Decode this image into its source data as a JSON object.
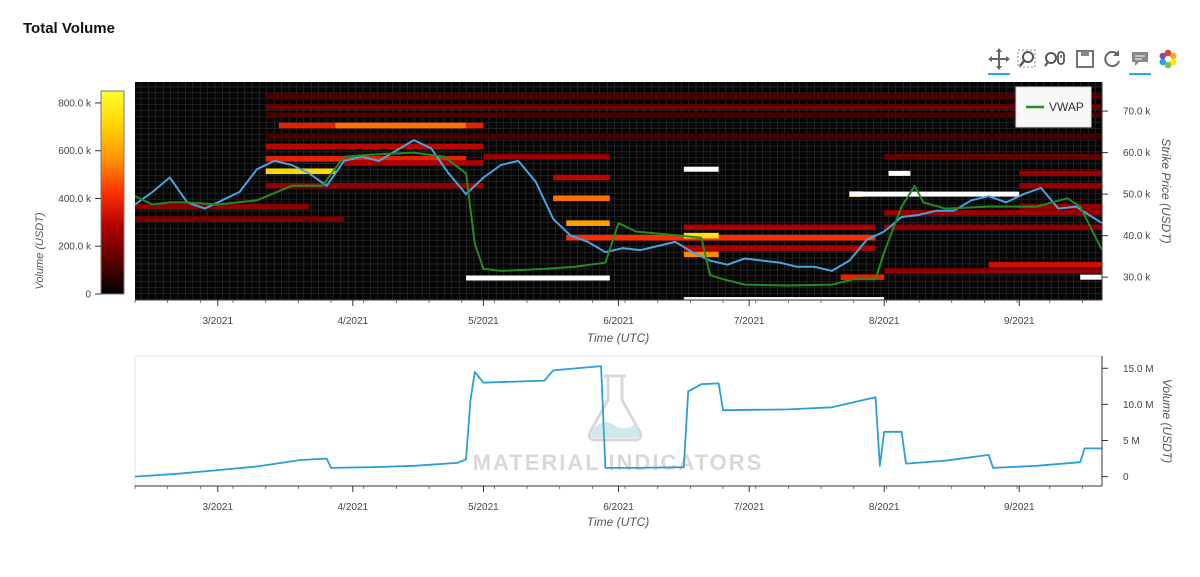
{
  "title": "Total Volume",
  "watermark": "MATERIAL INDICATORS",
  "toolbar": {
    "tools": [
      {
        "name": "pan-tool-icon",
        "active": true
      },
      {
        "name": "box-zoom-tool-icon",
        "active": false
      },
      {
        "name": "wheel-zoom-tool-icon",
        "active": false
      },
      {
        "name": "save-tool-icon",
        "active": false
      },
      {
        "name": "reset-tool-icon",
        "active": false
      },
      {
        "name": "hover-tool-icon",
        "active": true
      },
      {
        "name": "bokeh-logo-icon",
        "active": false
      }
    ]
  },
  "chart_data": [
    {
      "type": "heatmap",
      "xlabel": "Time (UTC)",
      "ylabel": "Strike Price (USDT)",
      "x_ticks": [
        "3/2021",
        "4/2021",
        "5/2021",
        "6/2021",
        "7/2021",
        "8/2021",
        "9/2021"
      ],
      "y_ticks": [
        "30.0 k",
        "40.0 k",
        "50.0 k",
        "60.0 k",
        "70.0 k"
      ],
      "y_tick_values": [
        30000,
        40000,
        50000,
        60000,
        70000
      ],
      "xlim": [
        "2021-02-10",
        "2021-09-20"
      ],
      "ylim": [
        24500,
        77000
      ],
      "colorbar": {
        "label": "Volume (USDT)",
        "ticks": [
          "0",
          "200.0 k",
          "400.0 k",
          "600.0 k",
          "800.0 k"
        ],
        "tick_values": [
          0,
          200000,
          400000,
          600000,
          800000
        ],
        "range": [
          0,
          850000
        ],
        "palette": [
          "#000000",
          "#5a0000",
          "#b00000",
          "#ff3000",
          "#ff9000",
          "#ffd000",
          "#ffff30"
        ]
      },
      "legend": {
        "position": "top-right",
        "entries": [
          {
            "name": "VWAP",
            "color": "#228b22"
          }
        ]
      },
      "series": [
        {
          "name": "",
          "color": "#4aa3df",
          "x": [
            "2021-02-10",
            "2021-02-14",
            "2021-02-18",
            "2021-02-22",
            "2021-02-26",
            "2021-03-02",
            "2021-03-06",
            "2021-03-10",
            "2021-03-14",
            "2021-03-18",
            "2021-03-22",
            "2021-03-26",
            "2021-03-30",
            "2021-04-03",
            "2021-04-07",
            "2021-04-11",
            "2021-04-15",
            "2021-04-19",
            "2021-04-23",
            "2021-04-27",
            "2021-05-01",
            "2021-05-05",
            "2021-05-09",
            "2021-05-13",
            "2021-05-17",
            "2021-05-21",
            "2021-05-25",
            "2021-05-29",
            "2021-06-02",
            "2021-06-06",
            "2021-06-10",
            "2021-06-14",
            "2021-06-18",
            "2021-06-22",
            "2021-06-26",
            "2021-06-30",
            "2021-07-04",
            "2021-07-08",
            "2021-07-12",
            "2021-07-16",
            "2021-07-20",
            "2021-07-24",
            "2021-07-28",
            "2021-08-01",
            "2021-08-05",
            "2021-08-09",
            "2021-08-13",
            "2021-08-17",
            "2021-08-21",
            "2021-08-25",
            "2021-08-29",
            "2021-09-02",
            "2021-09-06",
            "2021-09-10",
            "2021-09-14",
            "2021-09-20"
          ],
          "y": [
            47500,
            50500,
            54000,
            48000,
            46500,
            48500,
            50500,
            56000,
            58000,
            57000,
            55000,
            52000,
            58000,
            59000,
            58000,
            60500,
            63000,
            61000,
            55000,
            50000,
            54000,
            57000,
            58000,
            53000,
            44000,
            40000,
            38500,
            36000,
            37000,
            36500,
            37500,
            38500,
            36000,
            34000,
            33000,
            34500,
            34000,
            33500,
            32500,
            32500,
            31500,
            34000,
            39000,
            41000,
            44500,
            45000,
            46000,
            46000,
            48500,
            49500,
            48000,
            50000,
            51500,
            46500,
            47000,
            43000
          ]
        },
        {
          "name": "VWAP",
          "color": "#228b22",
          "x": [
            "2021-02-10",
            "2021-02-14",
            "2021-02-18",
            "2021-02-22",
            "2021-03-01",
            "2021-03-10",
            "2021-03-18",
            "2021-03-25",
            "2021-03-30",
            "2021-04-05",
            "2021-04-15",
            "2021-04-22",
            "2021-04-27",
            "2021-04-29",
            "2021-05-01",
            "2021-05-05",
            "2021-05-15",
            "2021-05-22",
            "2021-05-29",
            "2021-06-01",
            "2021-06-05",
            "2021-06-15",
            "2021-06-20",
            "2021-06-22",
            "2021-06-25",
            "2021-06-30",
            "2021-07-10",
            "2021-07-20",
            "2021-07-25",
            "2021-07-30",
            "2021-08-01",
            "2021-08-05",
            "2021-08-08",
            "2021-08-10",
            "2021-08-15",
            "2021-08-25",
            "2021-09-05",
            "2021-09-12",
            "2021-09-15",
            "2021-09-20"
          ],
          "y": [
            49500,
            47500,
            48000,
            48000,
            47500,
            48500,
            52000,
            52000,
            59000,
            59500,
            60000,
            59000,
            55000,
            38000,
            32000,
            31500,
            32000,
            32500,
            33500,
            43000,
            41000,
            40000,
            39500,
            30500,
            29500,
            28200,
            28000,
            28200,
            29500,
            29500,
            36000,
            47000,
            52000,
            48000,
            46500,
            47000,
            47000,
            49000,
            47000,
            36500
          ]
        }
      ],
      "segments": [
        {
          "x": [
            "2021-04-27",
            "2021-05-30"
          ],
          "y": 29800,
          "color": "#ffffff"
        },
        {
          "x": [
            "2021-06-16",
            "2021-06-24"
          ],
          "y": 56000,
          "color": "#ffffff"
        },
        {
          "x": [
            "2021-06-16",
            "2021-08-01"
          ],
          "y": 24600,
          "color": "#ffffff"
        },
        {
          "x": [
            "2021-07-24",
            "2021-09-01"
          ],
          "y": 50000,
          "color": "#ffffff"
        },
        {
          "x": [
            "2021-08-02",
            "2021-08-07"
          ],
          "y": 55000,
          "color": "#ffffff"
        },
        {
          "x": [
            "2021-09-15",
            "2021-09-20"
          ],
          "y": 30000,
          "color": "#ffffff"
        }
      ],
      "cells": [
        {
          "x": [
            "2021-02-10",
            "2021-03-22"
          ],
          "y": 47000,
          "value": 220000
        },
        {
          "x": [
            "2021-02-10",
            "2021-03-30"
          ],
          "y": 44000,
          "value": 200000
        },
        {
          "x": [
            "2021-03-12",
            "2021-03-28"
          ],
          "y": 55500,
          "value": 730000
        },
        {
          "x": [
            "2021-03-12",
            "2021-04-27"
          ],
          "y": 58500,
          "value": 380000
        },
        {
          "x": [
            "2021-03-15",
            "2021-05-01"
          ],
          "y": 66500,
          "value": 380000
        },
        {
          "x": [
            "2021-03-28",
            "2021-04-27"
          ],
          "y": 66500,
          "value": 520000
        },
        {
          "x": [
            "2021-03-12",
            "2021-05-01"
          ],
          "y": 61500,
          "value": 300000
        },
        {
          "x": [
            "2021-03-12",
            "2021-09-20"
          ],
          "y": 73500,
          "value": 120000
        },
        {
          "x": [
            "2021-03-12",
            "2021-09-20"
          ],
          "y": 71000,
          "value": 160000
        },
        {
          "x": [
            "2021-03-12",
            "2021-09-20"
          ],
          "y": 69000,
          "value": 120000
        },
        {
          "x": [
            "2021-03-12",
            "2021-09-20"
          ],
          "y": 64000,
          "value": 110000
        },
        {
          "x": [
            "2021-03-30",
            "2021-05-01"
          ],
          "y": 57500,
          "value": 280000
        },
        {
          "x": [
            "2021-03-12",
            "2021-05-01"
          ],
          "y": 52000,
          "value": 240000
        },
        {
          "x": [
            "2021-05-01",
            "2021-05-30"
          ],
          "y": 59000,
          "value": 240000
        },
        {
          "x": [
            "2021-05-17",
            "2021-05-30"
          ],
          "y": 54000,
          "value": 300000
        },
        {
          "x": [
            "2021-05-17",
            "2021-05-30"
          ],
          "y": 49000,
          "value": 520000
        },
        {
          "x": [
            "2021-05-20",
            "2021-05-30"
          ],
          "y": 43000,
          "value": 600000
        },
        {
          "x": [
            "2021-05-20",
            "2021-07-30"
          ],
          "y": 39500,
          "value": 420000
        },
        {
          "x": [
            "2021-06-16",
            "2021-06-24"
          ],
          "y": 40000,
          "value": 760000
        },
        {
          "x": [
            "2021-06-16",
            "2021-06-24"
          ],
          "y": 35500,
          "value": 560000
        },
        {
          "x": [
            "2021-06-16",
            "2021-07-30"
          ],
          "y": 42000,
          "value": 280000
        },
        {
          "x": [
            "2021-06-16",
            "2021-07-30"
          ],
          "y": 37000,
          "value": 280000
        },
        {
          "x": [
            "2021-07-24",
            "2021-07-27"
          ],
          "y": 50000,
          "value": 640000
        },
        {
          "x": [
            "2021-07-22",
            "2021-08-01"
          ],
          "y": 30000,
          "value": 380000
        },
        {
          "x": [
            "2021-08-01",
            "2021-09-20"
          ],
          "y": 45500,
          "value": 240000
        },
        {
          "x": [
            "2021-08-01",
            "2021-09-20"
          ],
          "y": 42000,
          "value": 230000
        },
        {
          "x": [
            "2021-09-01",
            "2021-09-20"
          ],
          "y": 55000,
          "value": 240000
        },
        {
          "x": [
            "2021-09-01",
            "2021-09-20"
          ],
          "y": 52000,
          "value": 240000
        },
        {
          "x": [
            "2021-09-01",
            "2021-09-20"
          ],
          "y": 47000,
          "value": 240000
        },
        {
          "x": [
            "2021-08-25",
            "2021-09-20"
          ],
          "y": 33000,
          "value": 330000
        },
        {
          "x": [
            "2021-08-01",
            "2021-09-20"
          ],
          "y": 31500,
          "value": 220000
        },
        {
          "x": [
            "2021-08-01",
            "2021-09-20"
          ],
          "y": 59000,
          "value": 160000
        }
      ]
    },
    {
      "type": "line",
      "xlabel": "Time (UTC)",
      "ylabel": "Volume (USDT)",
      "x_ticks": [
        "3/2021",
        "4/2021",
        "5/2021",
        "6/2021",
        "7/2021",
        "8/2021",
        "9/2021"
      ],
      "y_ticks": [
        "0",
        "5 M",
        "10.0 M",
        "15.0 M"
      ],
      "y_tick_values": [
        0,
        5000000,
        10000000,
        15000000
      ],
      "xlim": [
        "2021-02-10",
        "2021-09-20"
      ],
      "ylim": [
        -1300000,
        16700000
      ],
      "series": [
        {
          "name": "",
          "color": "#2b9fd4",
          "x": [
            "2021-02-10",
            "2021-02-20",
            "2021-03-01",
            "2021-03-10",
            "2021-03-20",
            "2021-03-26",
            "2021-03-27",
            "2021-04-05",
            "2021-04-15",
            "2021-04-25",
            "2021-04-27",
            "2021-04-28",
            "2021-04-29",
            "2021-05-01",
            "2021-05-15",
            "2021-05-17",
            "2021-05-28",
            "2021-05-29",
            "2021-06-05",
            "2021-06-16",
            "2021-06-17",
            "2021-06-20",
            "2021-06-24",
            "2021-06-25",
            "2021-07-10",
            "2021-07-20",
            "2021-07-30",
            "2021-07-31",
            "2021-08-01",
            "2021-08-05",
            "2021-08-06",
            "2021-08-15",
            "2021-08-25",
            "2021-08-26",
            "2021-09-05",
            "2021-09-15",
            "2021-09-16",
            "2021-09-20"
          ],
          "y": [
            0,
            400000,
            900000,
            1400000,
            2300000,
            2500000,
            1200000,
            1300000,
            1500000,
            1900000,
            2400000,
            10500000,
            14500000,
            13000000,
            13300000,
            14700000,
            15300000,
            1200000,
            1200000,
            1300000,
            11800000,
            12800000,
            12900000,
            9200000,
            9300000,
            9600000,
            11000000,
            1500000,
            6200000,
            6200000,
            1800000,
            2200000,
            3000000,
            1200000,
            1500000,
            2000000,
            3900000,
            3900000
          ]
        }
      ]
    }
  ]
}
